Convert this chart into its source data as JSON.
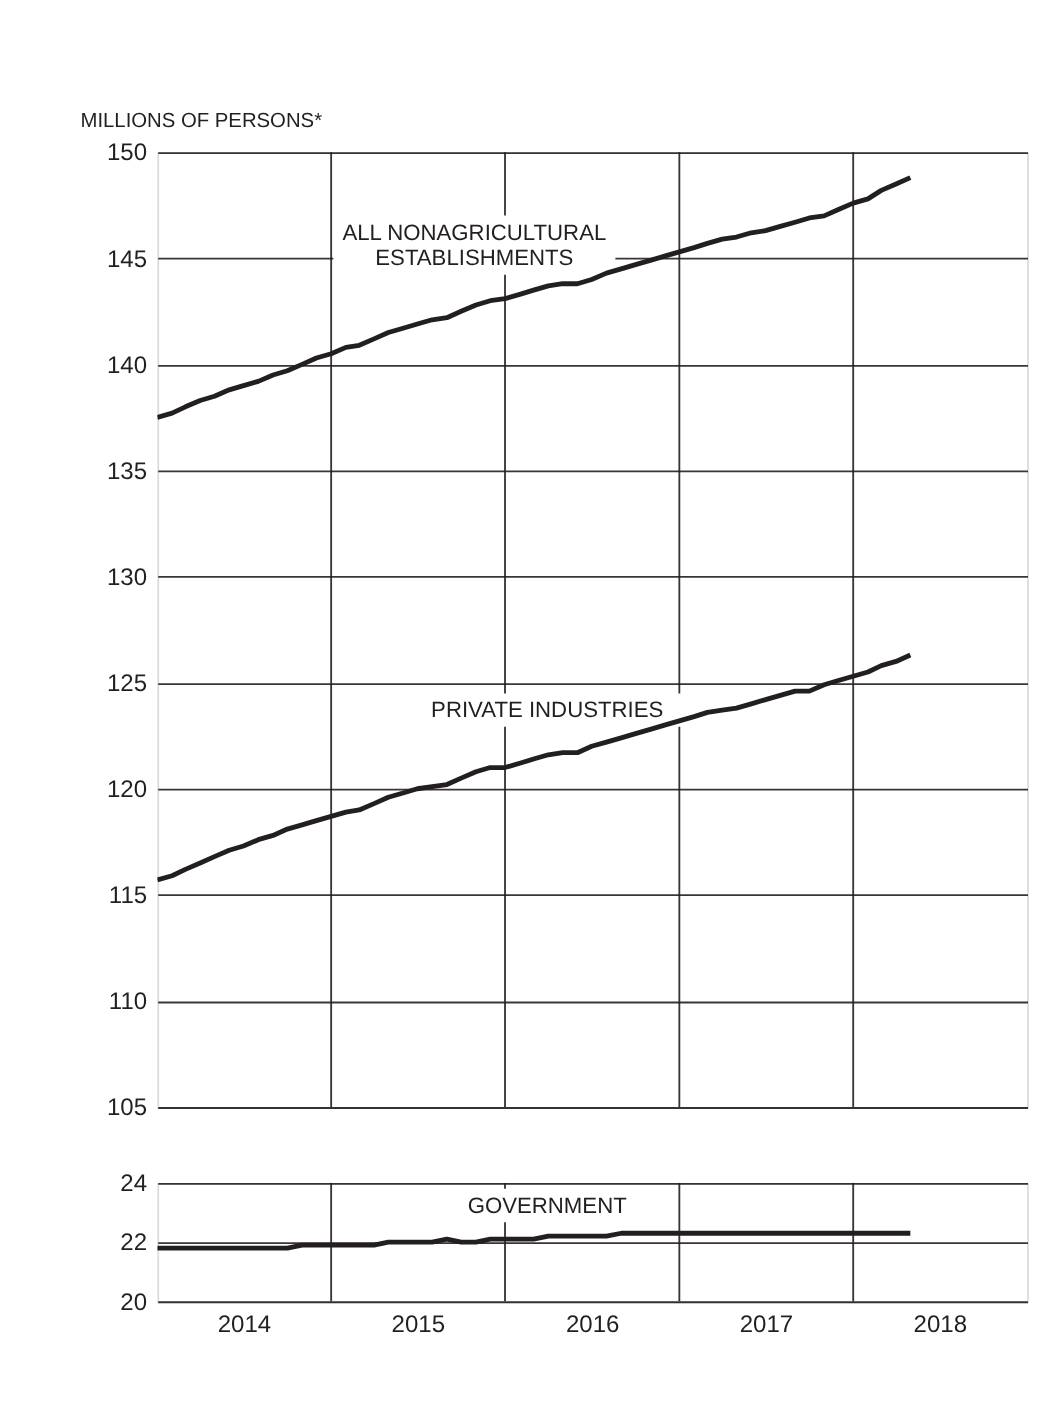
{
  "chart_data": [
    {
      "type": "line",
      "ylabel": "MILLIONS OF PERSONS*",
      "x": [
        "2014-01",
        "2014-02",
        "2014-03",
        "2014-04",
        "2014-05",
        "2014-06",
        "2014-07",
        "2014-08",
        "2014-09",
        "2014-10",
        "2014-11",
        "2014-12",
        "2015-01",
        "2015-02",
        "2015-03",
        "2015-04",
        "2015-05",
        "2015-06",
        "2015-07",
        "2015-08",
        "2015-09",
        "2015-10",
        "2015-11",
        "2015-12",
        "2016-01",
        "2016-02",
        "2016-03",
        "2016-04",
        "2016-05",
        "2016-06",
        "2016-07",
        "2016-08",
        "2016-09",
        "2016-10",
        "2016-11",
        "2016-12",
        "2017-01",
        "2017-02",
        "2017-03",
        "2017-04",
        "2017-05",
        "2017-06",
        "2017-07",
        "2017-08",
        "2017-09",
        "2017-10",
        "2017-11",
        "2017-12",
        "2018-01",
        "2018-02",
        "2018-03",
        "2018-04",
        "2018-05"
      ],
      "series": [
        {
          "name": "ALL NONAGRICULTURAL ESTABLISHMENTS",
          "color": "#231f20",
          "values": [
            137.5,
            137.7,
            138.0,
            138.3,
            138.5,
            138.8,
            139.0,
            139.2,
            139.5,
            139.7,
            140.0,
            140.3,
            140.5,
            140.8,
            140.9,
            141.2,
            141.5,
            141.7,
            141.9,
            142.1,
            142.2,
            142.5,
            142.8,
            143.0,
            143.1,
            143.3,
            143.5,
            143.7,
            143.8,
            143.8,
            144.0,
            144.3,
            144.5,
            144.7,
            144.9,
            145.1,
            145.3,
            145.5,
            145.7,
            145.9,
            146.0,
            146.2,
            146.3,
            146.5,
            146.7,
            146.9,
            147.0,
            147.3,
            147.6,
            147.8,
            148.2,
            148.5,
            148.8
          ]
        },
        {
          "name": "PRIVATE INDUSTRIES",
          "color": "#231f20",
          "values": [
            115.7,
            115.9,
            116.2,
            116.5,
            116.8,
            117.1,
            117.3,
            117.6,
            117.8,
            118.1,
            118.3,
            118.5,
            118.7,
            118.9,
            119.0,
            119.3,
            119.6,
            119.8,
            120.0,
            120.1,
            120.2,
            120.5,
            120.8,
            121.0,
            121.0,
            121.2,
            121.4,
            121.6,
            121.7,
            121.7,
            122.0,
            122.2,
            122.4,
            122.6,
            122.8,
            123.0,
            123.2,
            123.4,
            123.6,
            123.7,
            123.8,
            124.0,
            124.2,
            124.4,
            124.6,
            124.6,
            124.9,
            125.1,
            125.3,
            125.5,
            125.8,
            126.0,
            126.3
          ]
        }
      ],
      "xlim": [
        "2014-01",
        "2019-01"
      ],
      "xticks": [
        {
          "value": "2015-01",
          "label": null
        },
        {
          "value": "2016-01",
          "label": null
        },
        {
          "value": "2017-01",
          "label": null
        },
        {
          "value": "2018-01",
          "label": null
        }
      ],
      "ylim": [
        105,
        150
      ],
      "yticks": [
        105,
        110,
        115,
        120,
        125,
        130,
        135,
        140,
        145,
        150
      ],
      "grid": true,
      "tick_labels": "y",
      "line_style": "solid",
      "marker": "none"
    },
    {
      "type": "line",
      "x": [
        "2014-01",
        "2014-02",
        "2014-03",
        "2014-04",
        "2014-05",
        "2014-06",
        "2014-07",
        "2014-08",
        "2014-09",
        "2014-10",
        "2014-11",
        "2014-12",
        "2015-01",
        "2015-02",
        "2015-03",
        "2015-04",
        "2015-05",
        "2015-06",
        "2015-07",
        "2015-08",
        "2015-09",
        "2015-10",
        "2015-11",
        "2015-12",
        "2016-01",
        "2016-02",
        "2016-03",
        "2016-04",
        "2016-05",
        "2016-06",
        "2016-07",
        "2016-08",
        "2016-09",
        "2016-10",
        "2016-11",
        "2016-12",
        "2017-01",
        "2017-02",
        "2017-03",
        "2017-04",
        "2017-05",
        "2017-06",
        "2017-07",
        "2017-08",
        "2017-09",
        "2017-10",
        "2017-11",
        "2017-12",
        "2018-01",
        "2018-02",
        "2018-03",
        "2018-04",
        "2018-05"
      ],
      "series": [
        {
          "name": "GOVERNMENT",
          "color": "#231f20",
          "values": [
            21.8,
            21.8,
            21.8,
            21.8,
            21.8,
            21.8,
            21.8,
            21.8,
            21.8,
            21.8,
            21.9,
            21.9,
            21.9,
            21.9,
            21.9,
            21.9,
            22.0,
            22.0,
            22.0,
            22.0,
            22.1,
            22.0,
            22.0,
            22.1,
            22.1,
            22.1,
            22.1,
            22.2,
            22.2,
            22.2,
            22.2,
            22.2,
            22.3,
            22.3,
            22.3,
            22.3,
            22.3,
            22.3,
            22.3,
            22.3,
            22.3,
            22.3,
            22.3,
            22.3,
            22.3,
            22.3,
            22.3,
            22.3,
            22.3,
            22.3,
            22.3,
            22.3,
            22.3
          ]
        }
      ],
      "xlim": [
        "2014-01",
        "2019-01"
      ],
      "xticks": [
        {
          "value": "2014-07",
          "label": "2014"
        },
        {
          "value": "2015-01",
          "label": null
        },
        {
          "value": "2015-07",
          "label": "2015"
        },
        {
          "value": "2016-01",
          "label": null
        },
        {
          "value": "2016-07",
          "label": "2016"
        },
        {
          "value": "2017-01",
          "label": null
        },
        {
          "value": "2017-07",
          "label": "2017"
        },
        {
          "value": "2018-01",
          "label": null
        },
        {
          "value": "2018-07",
          "label": "2018"
        }
      ],
      "ylim": [
        20,
        24
      ],
      "yticks": [
        20,
        22,
        24
      ],
      "grid": true,
      "line_style": "solid",
      "marker": "none"
    }
  ]
}
